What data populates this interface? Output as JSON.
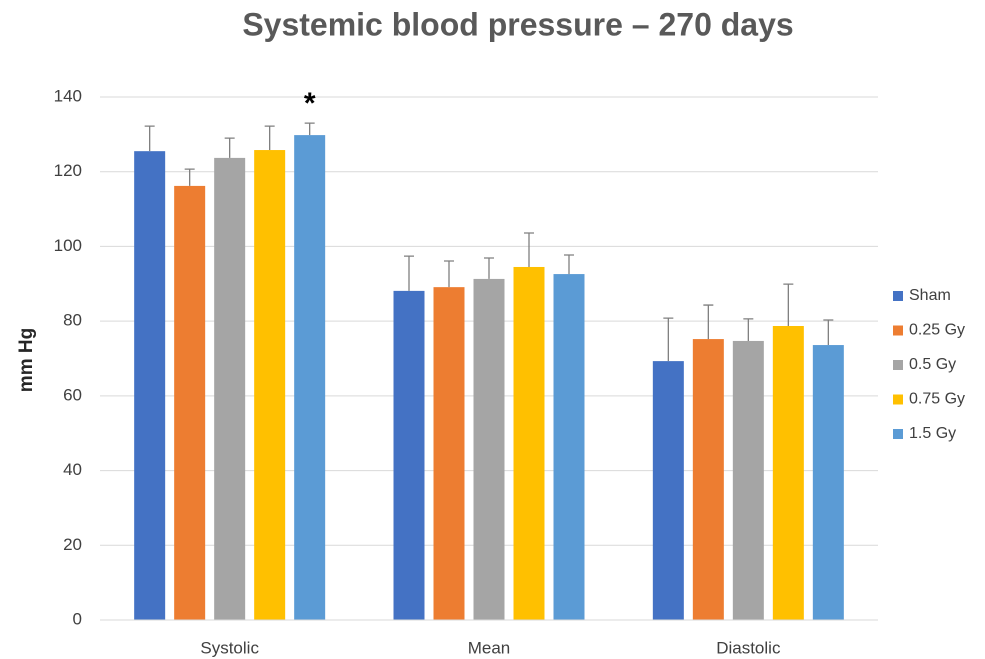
{
  "chart_data": {
    "type": "bar",
    "title": "Systemic blood pressure – 270 days",
    "y_label": "mm Hg",
    "categories": [
      "Systolic",
      "Mean",
      "Diastolic"
    ],
    "series": [
      {
        "name": "Sham",
        "color": "#4472c4",
        "values": [
          125.5,
          88.1,
          69.3
        ],
        "errors": [
          6.7,
          9.3,
          11.5
        ]
      },
      {
        "name": "0.25 Gy",
        "color": "#ed7d31",
        "values": [
          116.2,
          89.1,
          75.2
        ],
        "errors": [
          4.5,
          7.0,
          9.1
        ]
      },
      {
        "name": "0.5 Gy",
        "color": "#a5a5a5",
        "values": [
          123.7,
          91.3,
          74.7
        ],
        "errors": [
          5.3,
          5.6,
          5.9
        ]
      },
      {
        "name": "0.75 Gy",
        "color": "#ffc000",
        "values": [
          125.8,
          94.5,
          78.7
        ],
        "errors": [
          6.4,
          9.1,
          11.2
        ]
      },
      {
        "name": "1.5 Gy",
        "color": "#5b9bd5",
        "values": [
          129.8,
          92.6,
          73.6
        ],
        "errors": [
          3.2,
          5.1,
          6.7
        ]
      }
    ],
    "annotation": "*",
    "ylim": [
      0,
      140
    ],
    "yticks": [
      0,
      20,
      40,
      60,
      80,
      100,
      120,
      140
    ],
    "grid": true,
    "legend": "right"
  }
}
